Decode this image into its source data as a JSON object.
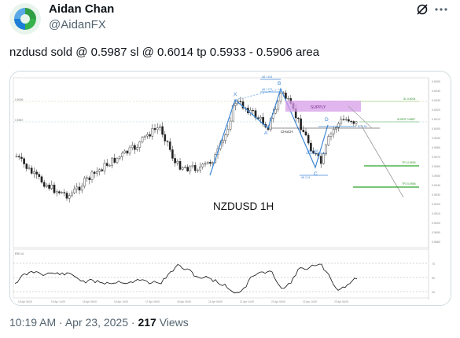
{
  "author": {
    "name": "Aidan Chan",
    "handle": "@AidanFX"
  },
  "tweet": {
    "text": "nzdusd sold @ 0.5987 sl @ 0.6014 tp 0.5933 - 0.5906 area"
  },
  "meta": {
    "time": "10:19 AM",
    "separator1": " · ",
    "date": "Apr 23, 2025",
    "separator2": " · ",
    "views_count": "217",
    "views_label": " Views"
  },
  "chart": {
    "title": "NZDUSD 1H",
    "supply_label": "SUPPLY",
    "choch_label": "CHoCH",
    "points": [
      "X",
      "A",
      "B",
      "C",
      "D"
    ],
    "indicator_label": "RSI 14",
    "right_labels": {
      "sl": "SL 0.6014",
      "short": "SHORT 0.5987",
      "tp1": "TP1 0.5933",
      "tp2": "TP2 0.5906"
    },
    "colors": {
      "pattern_line": "#3d87d6",
      "supply_zone": "#d79ce8",
      "tp_line": "#2aa32a",
      "sl_line": "#b8d9a0",
      "candle": "#222222"
    }
  },
  "icons": {
    "grok": "grok-icon",
    "more": "more-dots-icon"
  }
}
